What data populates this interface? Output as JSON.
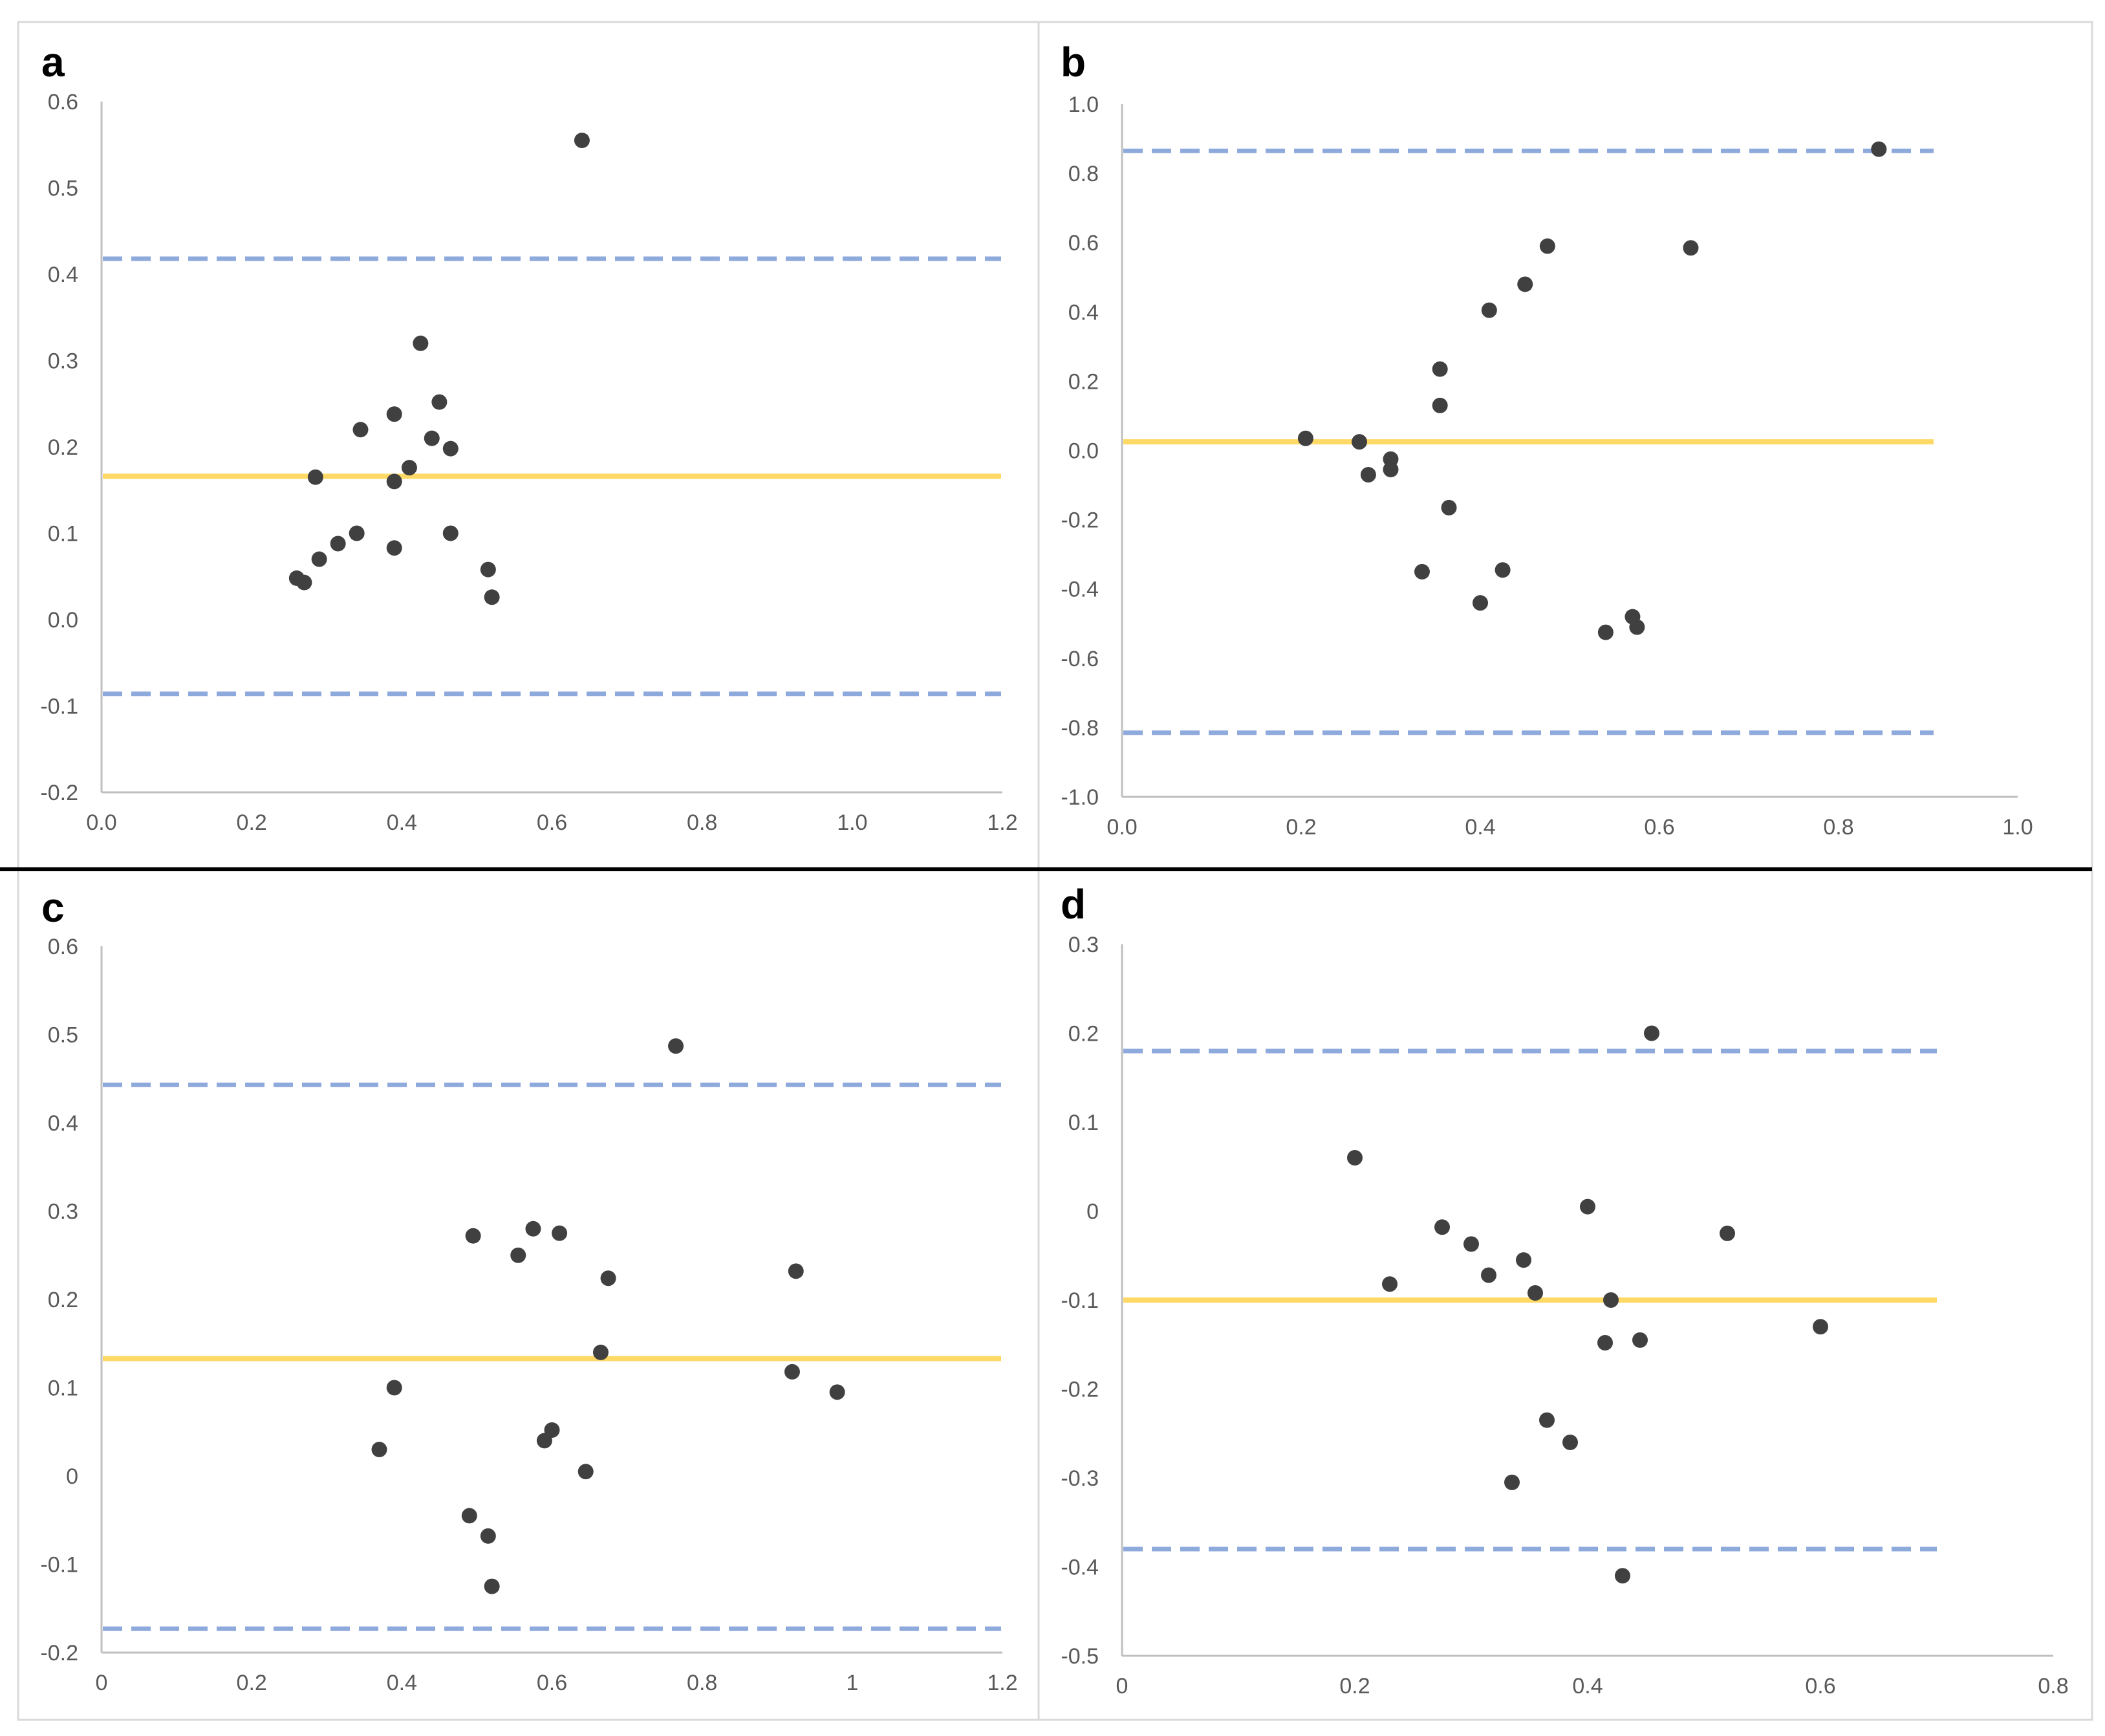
{
  "colors": {
    "mean_line": "#FFD966",
    "limit_line": "#8EA9DB",
    "point": "#404040",
    "axis": "#BFBFBF",
    "tick_text": "#595959",
    "border": "#D9D9D9",
    "divider": "#000000"
  },
  "chart_data": [
    {
      "panel": "a",
      "type": "scatter",
      "title": "",
      "xlabel": "",
      "ylabel": "",
      "xlim": [
        0.0,
        1.2
      ],
      "ylim": [
        -0.2,
        0.6
      ],
      "x_ticks": [
        "0.0",
        "0.2",
        "0.4",
        "0.6",
        "0.8",
        "1.0",
        "1.2"
      ],
      "y_ticks": [
        "-0.2",
        "-0.1",
        "0.0",
        "0.1",
        "0.2",
        "0.3",
        "0.4",
        "0.5",
        "0.6"
      ],
      "mean_line": 0.166,
      "limit_lines": [
        0.418,
        -0.086
      ],
      "x": [
        0.26,
        0.27,
        0.285,
        0.29,
        0.315,
        0.34,
        0.345,
        0.39,
        0.39,
        0.39,
        0.41,
        0.425,
        0.44,
        0.45,
        0.465,
        0.465,
        0.515,
        0.52,
        0.64
      ],
      "y": [
        0.048,
        0.043,
        0.165,
        0.07,
        0.088,
        0.1,
        0.22,
        0.238,
        0.16,
        0.083,
        0.176,
        0.32,
        0.21,
        0.252,
        0.198,
        0.1,
        0.058,
        0.026,
        0.555
      ]
    },
    {
      "panel": "b",
      "type": "scatter",
      "title": "",
      "xlabel": "",
      "ylabel": "",
      "xlim": [
        0.0,
        1.0
      ],
      "ylim": [
        -1.0,
        1.0
      ],
      "x_ticks": [
        "0.0",
        "0.2",
        "0.4",
        "0.6",
        "0.8",
        "1.0"
      ],
      "y_ticks": [
        "-1.0",
        "-0.8",
        "-0.6",
        "-0.4",
        "-0.2",
        "0.0",
        "0.2",
        "0.4",
        "0.6",
        "0.8",
        "1.0"
      ],
      "mean_line": 0.025,
      "limit_lines": [
        0.865,
        -0.815
      ],
      "x": [
        0.205,
        0.265,
        0.275,
        0.3,
        0.3,
        0.335,
        0.355,
        0.355,
        0.365,
        0.4,
        0.41,
        0.425,
        0.45,
        0.475,
        0.54,
        0.57,
        0.575,
        0.635,
        0.845
      ],
      "y": [
        0.035,
        0.025,
        -0.07,
        -0.025,
        -0.055,
        -0.35,
        0.13,
        0.235,
        -0.165,
        -0.44,
        0.405,
        -0.345,
        0.48,
        0.59,
        -0.525,
        -0.48,
        -0.51,
        0.585,
        0.87
      ]
    },
    {
      "panel": "c",
      "type": "scatter",
      "title": "",
      "xlabel": "",
      "ylabel": "",
      "xlim": [
        0,
        1.2
      ],
      "ylim": [
        -0.2,
        0.6
      ],
      "x_ticks": [
        "0",
        "0.2",
        "0.4",
        "0.6",
        "0.8",
        "1",
        "1.2"
      ],
      "y_ticks": [
        "-0.2",
        "-0.1",
        "0",
        "0.1",
        "0.2",
        "0.3",
        "0.4",
        "0.5",
        "0.6"
      ],
      "mean_line": 0.133,
      "limit_lines": [
        0.443,
        -0.173
      ],
      "x": [
        0.37,
        0.39,
        0.49,
        0.495,
        0.515,
        0.52,
        0.555,
        0.575,
        0.59,
        0.6,
        0.61,
        0.645,
        0.665,
        0.675,
        0.765,
        0.92,
        0.925,
        0.98
      ],
      "y": [
        0.03,
        0.1,
        -0.045,
        0.272,
        -0.068,
        -0.125,
        0.25,
        0.28,
        0.04,
        0.052,
        0.275,
        0.005,
        0.14,
        0.224,
        0.487,
        0.118,
        0.232,
        0.095
      ]
    },
    {
      "panel": "d",
      "type": "scatter",
      "title": "",
      "xlabel": "",
      "ylabel": "",
      "xlim": [
        0,
        0.8
      ],
      "ylim": [
        -0.5,
        0.3
      ],
      "x_ticks": [
        "0",
        "0.2",
        "0.4",
        "0.6",
        "0.8"
      ],
      "y_ticks": [
        "-0.5",
        "-0.4",
        "-0.3",
        "-0.2",
        "-0.1",
        "0",
        "0.1",
        "0.2",
        "0.3"
      ],
      "mean_line": -0.1,
      "limit_lines": [
        0.18,
        -0.38
      ],
      "x": [
        0.2,
        0.23,
        0.275,
        0.3,
        0.315,
        0.335,
        0.345,
        0.355,
        0.365,
        0.385,
        0.4,
        0.415,
        0.42,
        0.43,
        0.445,
        0.455,
        0.52,
        0.6
      ],
      "y": [
        0.06,
        -0.082,
        -0.018,
        -0.037,
        -0.072,
        -0.305,
        -0.055,
        -0.092,
        -0.235,
        -0.26,
        0.005,
        -0.148,
        -0.1,
        -0.41,
        -0.145,
        0.2,
        -0.025,
        -0.13
      ]
    }
  ]
}
